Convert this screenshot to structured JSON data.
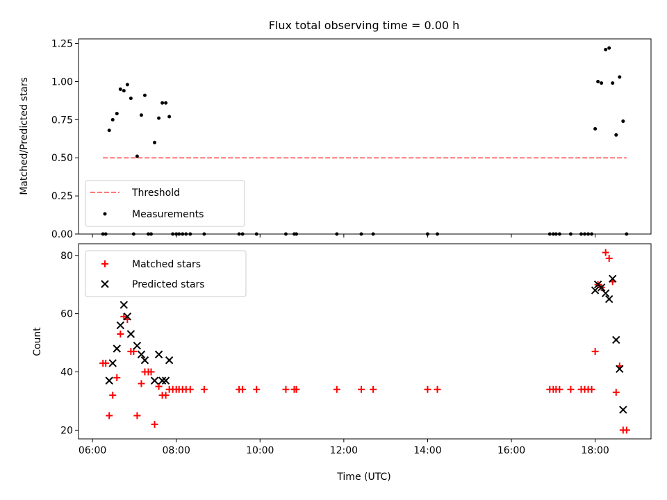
{
  "chart_data": [
    {
      "type": "scatter",
      "title": "Flux total observing time = 0.00 h",
      "xlabel": "",
      "ylabel": "Matched/Predicted stars",
      "ylim": [
        0,
        1.28
      ],
      "yticks": [
        "0.00",
        "0.25",
        "0.50",
        "0.75",
        "1.00",
        "1.25"
      ],
      "grid": false,
      "legend_position": "lower-left",
      "series": [
        {
          "name": "Threshold",
          "style": "dashed-line",
          "color": "#ff7777",
          "points": [
            [
              "06:15",
              0.5
            ],
            [
              "18:45",
              0.5
            ]
          ]
        },
        {
          "name": "Measurements",
          "style": "dot",
          "color": "#000000",
          "points": [
            [
              "06:15",
              0.0
            ],
            [
              "06:19",
              0.0
            ],
            [
              "06:24",
              0.68
            ],
            [
              "06:29",
              0.75
            ],
            [
              "06:35",
              0.79
            ],
            [
              "06:40",
              0.95
            ],
            [
              "06:45",
              0.94
            ],
            [
              "06:50",
              0.98
            ],
            [
              "06:55",
              0.89
            ],
            [
              "06:59",
              0.0
            ],
            [
              "07:04",
              0.51
            ],
            [
              "07:10",
              0.78
            ],
            [
              "07:15",
              0.91
            ],
            [
              "07:20",
              0.0
            ],
            [
              "07:24",
              0.0
            ],
            [
              "07:29",
              0.6
            ],
            [
              "07:35",
              0.76
            ],
            [
              "07:40",
              0.86
            ],
            [
              "07:45",
              0.86
            ],
            [
              "07:50",
              0.77
            ],
            [
              "07:55",
              0.0
            ],
            [
              "08:00",
              0.0
            ],
            [
              "08:04",
              0.0
            ],
            [
              "08:09",
              0.0
            ],
            [
              "08:14",
              0.0
            ],
            [
              "08:20",
              0.0
            ],
            [
              "08:40",
              0.0
            ],
            [
              "09:30",
              0.0
            ],
            [
              "09:35",
              0.0
            ],
            [
              "09:55",
              0.0
            ],
            [
              "10:37",
              0.0
            ],
            [
              "10:49",
              0.0
            ],
            [
              "10:52",
              0.0
            ],
            [
              "11:50",
              0.0
            ],
            [
              "12:25",
              0.0
            ],
            [
              "12:42",
              0.0
            ],
            [
              "14:00",
              0.0
            ],
            [
              "14:14",
              0.0
            ],
            [
              "16:55",
              0.0
            ],
            [
              "17:00",
              0.0
            ],
            [
              "17:04",
              0.0
            ],
            [
              "17:09",
              0.0
            ],
            [
              "17:25",
              0.0
            ],
            [
              "17:40",
              0.0
            ],
            [
              "17:45",
              0.0
            ],
            [
              "17:50",
              0.0
            ],
            [
              "17:55",
              0.0
            ],
            [
              "18:00",
              0.69
            ],
            [
              "18:04",
              1.0
            ],
            [
              "18:09",
              0.99
            ],
            [
              "18:15",
              1.21
            ],
            [
              "18:20",
              1.22
            ],
            [
              "18:25",
              0.99
            ],
            [
              "18:30",
              0.65
            ],
            [
              "18:35",
              1.03
            ],
            [
              "18:40",
              0.74
            ],
            [
              "18:45",
              0.0
            ]
          ]
        }
      ]
    },
    {
      "type": "scatter",
      "title": "",
      "xlabel": "Time (UTC)",
      "ylabel": "Count",
      "ylim": [
        17,
        84
      ],
      "yticks": [
        "20",
        "40",
        "60",
        "80"
      ],
      "xlim": [
        "05:40",
        "19:20"
      ],
      "xticks": [
        "06:00",
        "08:00",
        "10:00",
        "12:00",
        "14:00",
        "16:00",
        "18:00"
      ],
      "grid": false,
      "legend_position": "upper-left",
      "series": [
        {
          "name": "Matched stars",
          "style": "plus",
          "color": "#ff0000",
          "points": [
            [
              "06:15",
              43
            ],
            [
              "06:19",
              43
            ],
            [
              "06:24",
              25
            ],
            [
              "06:29",
              32
            ],
            [
              "06:35",
              38
            ],
            [
              "06:40",
              53
            ],
            [
              "06:45",
              59
            ],
            [
              "06:50",
              58
            ],
            [
              "06:55",
              47
            ],
            [
              "06:59",
              47
            ],
            [
              "07:04",
              25
            ],
            [
              "07:10",
              36
            ],
            [
              "07:15",
              40
            ],
            [
              "07:20",
              40
            ],
            [
              "07:24",
              40
            ],
            [
              "07:29",
              22
            ],
            [
              "07:35",
              35
            ],
            [
              "07:40",
              32
            ],
            [
              "07:45",
              32
            ],
            [
              "07:50",
              34
            ],
            [
              "07:55",
              34
            ],
            [
              "08:00",
              34
            ],
            [
              "08:04",
              34
            ],
            [
              "08:09",
              34
            ],
            [
              "08:14",
              34
            ],
            [
              "08:20",
              34
            ],
            [
              "08:40",
              34
            ],
            [
              "09:30",
              34
            ],
            [
              "09:35",
              34
            ],
            [
              "09:55",
              34
            ],
            [
              "10:37",
              34
            ],
            [
              "10:49",
              34
            ],
            [
              "10:52",
              34
            ],
            [
              "11:50",
              34
            ],
            [
              "12:25",
              34
            ],
            [
              "12:42",
              34
            ],
            [
              "14:00",
              34
            ],
            [
              "14:14",
              34
            ],
            [
              "16:55",
              34
            ],
            [
              "17:00",
              34
            ],
            [
              "17:04",
              34
            ],
            [
              "17:09",
              34
            ],
            [
              "17:25",
              34
            ],
            [
              "17:40",
              34
            ],
            [
              "17:45",
              34
            ],
            [
              "17:50",
              34
            ],
            [
              "17:55",
              34
            ],
            [
              "18:00",
              47
            ],
            [
              "18:04",
              70
            ],
            [
              "18:09",
              69
            ],
            [
              "18:15",
              81
            ],
            [
              "18:20",
              79
            ],
            [
              "18:25",
              71
            ],
            [
              "18:30",
              33
            ],
            [
              "18:35",
              42
            ],
            [
              "18:40",
              20
            ],
            [
              "18:45",
              20
            ]
          ]
        },
        {
          "name": "Predicted stars",
          "style": "cross",
          "color": "#000000",
          "points": [
            [
              "06:24",
              37
            ],
            [
              "06:29",
              43
            ],
            [
              "06:35",
              48
            ],
            [
              "06:40",
              56
            ],
            [
              "06:45",
              63
            ],
            [
              "06:50",
              59
            ],
            [
              "06:55",
              53
            ],
            [
              "07:04",
              49
            ],
            [
              "07:10",
              46
            ],
            [
              "07:15",
              44
            ],
            [
              "07:29",
              37
            ],
            [
              "07:35",
              46
            ],
            [
              "07:40",
              37
            ],
            [
              "07:45",
              37
            ],
            [
              "07:50",
              44
            ],
            [
              "18:00",
              68
            ],
            [
              "18:04",
              70
            ],
            [
              "18:09",
              69
            ],
            [
              "18:15",
              67
            ],
            [
              "18:20",
              65
            ],
            [
              "18:25",
              72
            ],
            [
              "18:30",
              51
            ],
            [
              "18:35",
              41
            ],
            [
              "18:40",
              27
            ]
          ]
        }
      ]
    }
  ]
}
